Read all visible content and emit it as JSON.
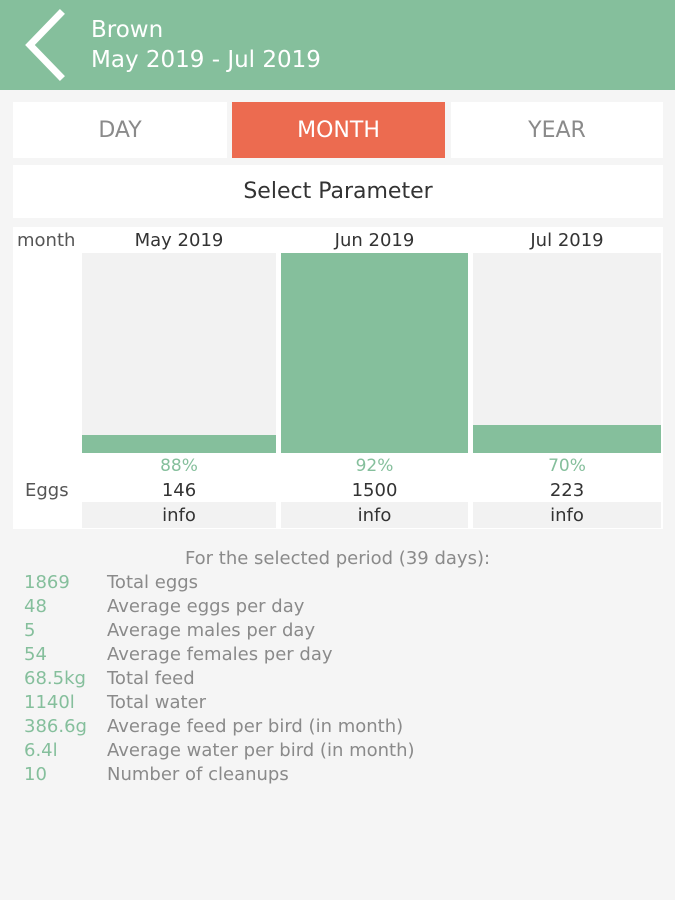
{
  "header": {
    "title": "Brown",
    "subtitle": "May 2019 - Jul 2019",
    "back_icon": "chevron-left-icon",
    "color": "#85bf9c"
  },
  "tabs": [
    {
      "label": "DAY",
      "active": false
    },
    {
      "label": "MONTH",
      "active": true
    },
    {
      "label": "YEAR",
      "active": false
    }
  ],
  "accent_color": "#ec6b50",
  "select_parameter": "Select Parameter",
  "chart": {
    "row_header": "month",
    "metric_label": "Eggs",
    "columns": [
      {
        "month": "May 2019",
        "percent": "88%",
        "count": "146",
        "info": "info",
        "bar_level": 0.09
      },
      {
        "month": "Jun 2019",
        "percent": "92%",
        "count": "1500",
        "info": "info",
        "bar_level": 1.0
      },
      {
        "month": "Jul 2019",
        "percent": "70%",
        "count": "223",
        "info": "info",
        "bar_level": 0.14
      }
    ]
  },
  "summary": {
    "title": "For the selected period (39 days):",
    "stats": [
      {
        "value": "1869",
        "label": "Total eggs"
      },
      {
        "value": "48",
        "label": "Average eggs per day"
      },
      {
        "value": "5",
        "label": "Average males per day"
      },
      {
        "value": "54",
        "label": "Average females per day"
      },
      {
        "value": "68.5kg",
        "label": "Total feed"
      },
      {
        "value": "1140l",
        "label": "Total water"
      },
      {
        "value": "386.6g",
        "label": "Average feed per bird (in month)"
      },
      {
        "value": "6.4l",
        "label": "Average water per bird (in month)"
      },
      {
        "value": "10",
        "label": "Number of cleanups"
      }
    ]
  }
}
